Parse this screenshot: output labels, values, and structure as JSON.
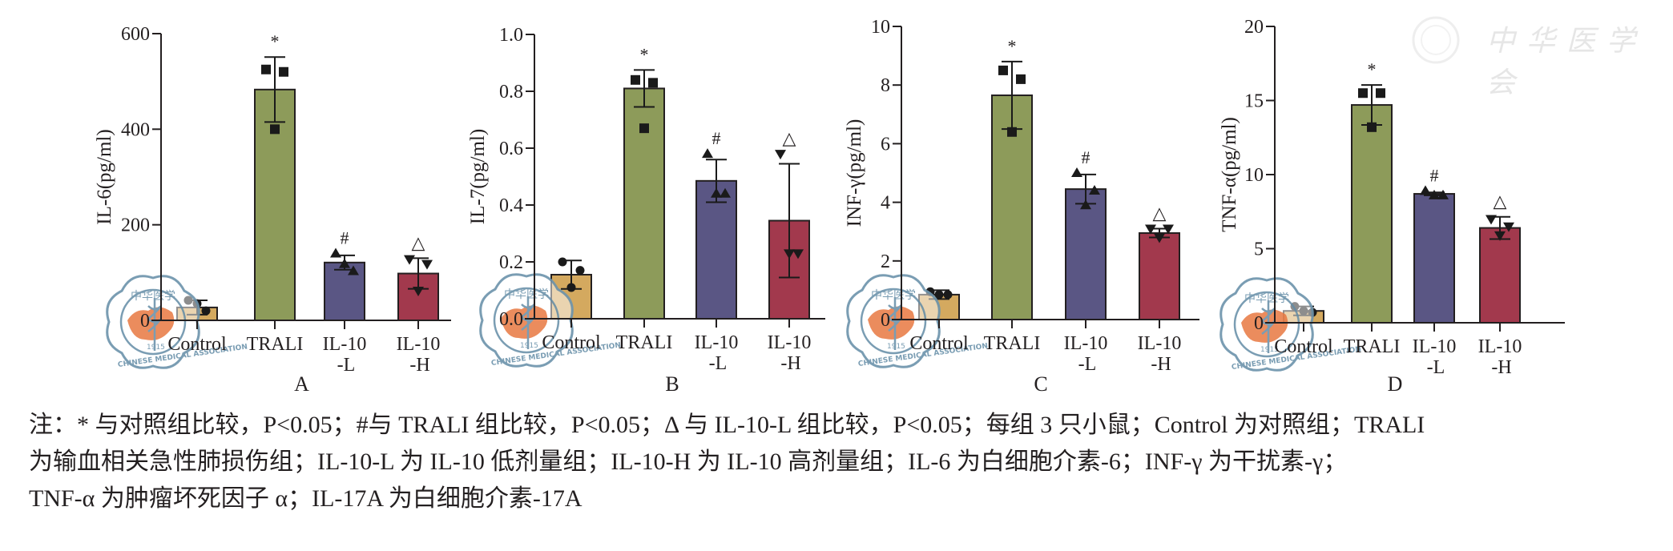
{
  "figure": {
    "watermark_text": "中华医学会",
    "logo_text": "CHINESE MEDICAL ASSOCIATION",
    "logo_cn": "中华医学",
    "logo_year": "1915"
  },
  "colors": {
    "Control": "#d4a95f",
    "TRALI": "#8d9b5a",
    "IL-10-L": "#5a5684",
    "IL-10-H": "#a2394d",
    "axis": "#231f20",
    "logo_ring": "#6f95ad",
    "logo_map": "#ea8350"
  },
  "chart_data": [
    {
      "panel": "A",
      "type": "bar",
      "title": "",
      "xlabel": "",
      "ylabel": "IL-6(pg/ml)",
      "categories": [
        "Control",
        "TRALI",
        "IL-10\n-L",
        "IL-10\n-H"
      ],
      "category_keys": [
        "Control",
        "TRALI",
        "IL-10-L",
        "IL-10-H"
      ],
      "values": [
        27,
        483,
        121,
        98
      ],
      "errors": [
        15,
        68,
        15,
        32
      ],
      "points": [
        [
          42,
          20,
          35
        ],
        [
          525,
          520,
          400
        ],
        [
          140,
          103,
          118
        ],
        [
          128,
          118,
          62
        ]
      ],
      "markers": [
        "circle",
        "square",
        "triangle-up",
        "triangle-down"
      ],
      "significance": [
        "",
        "*",
        "#",
        "△"
      ],
      "ylim": [
        0,
        600
      ],
      "yticks": [
        0,
        200,
        400,
        600
      ],
      "ytick_labels": [
        "0",
        "200",
        "400",
        "600"
      ],
      "grid": false
    },
    {
      "panel": "B",
      "type": "bar",
      "title": "",
      "xlabel": "",
      "ylabel": "IL-7(pg/ml)",
      "categories": [
        "Control",
        "TRALI",
        "IL-10\n-L",
        "IL-10\n-H"
      ],
      "category_keys": [
        "Control",
        "TRALI",
        "IL-10-L",
        "IL-10-H"
      ],
      "values": [
        0.155,
        0.81,
        0.485,
        0.345
      ],
      "errors": [
        0.05,
        0.065,
        0.075,
        0.2
      ],
      "points": [
        [
          0.2,
          0.17,
          0.11
        ],
        [
          0.84,
          0.83,
          0.67
        ],
        [
          0.58,
          0.44,
          0.44
        ],
        [
          0.58,
          0.23,
          0.23
        ]
      ],
      "markers": [
        "circle",
        "square",
        "triangle-up",
        "triangle-down"
      ],
      "significance": [
        "",
        "*",
        "#",
        "△"
      ],
      "ylim": [
        0,
        1.0
      ],
      "yticks": [
        0,
        0.2,
        0.4,
        0.6,
        0.8,
        1.0
      ],
      "ytick_labels": [
        "0.0",
        "0.2",
        "0.4",
        "0.6",
        "0.8",
        "1.0"
      ],
      "grid": false
    },
    {
      "panel": "C",
      "type": "bar",
      "title": "",
      "xlabel": "",
      "ylabel": "INF-γ(pg/ml)",
      "categories": [
        "Control",
        "TRALI",
        "IL-10\n-L",
        "IL-10\n-H"
      ],
      "category_keys": [
        "Control",
        "TRALI",
        "IL-10-L",
        "IL-10-H"
      ],
      "values": [
        0.85,
        7.65,
        4.45,
        2.95
      ],
      "errors": [
        0.15,
        1.15,
        0.5,
        0.15
      ],
      "points": [
        [
          0.95,
          0.85,
          0.85
        ],
        [
          8.5,
          8.2,
          6.4
        ],
        [
          5.0,
          4.4,
          3.9
        ],
        [
          3.1,
          3.1,
          2.8
        ]
      ],
      "markers": [
        "circle",
        "square",
        "triangle-up",
        "triangle-down"
      ],
      "significance": [
        "",
        "*",
        "#",
        "△"
      ],
      "ylim": [
        0,
        10
      ],
      "yticks": [
        0,
        2,
        4,
        6,
        8,
        10
      ],
      "ytick_labels": [
        "0",
        "2",
        "4",
        "6",
        "8",
        "10"
      ],
      "grid": false
    },
    {
      "panel": "D",
      "type": "bar",
      "title": "",
      "xlabel": "",
      "ylabel": "TNF-α(pg/ml)",
      "categories": [
        "Control",
        "TRALI",
        "IL-10\n-L",
        "IL-10\n-H"
      ],
      "category_keys": [
        "Control",
        "TRALI",
        "IL-10-L",
        "IL-10-H"
      ],
      "values": [
        0.8,
        14.7,
        8.7,
        6.4
      ],
      "errors": [
        0.3,
        1.35,
        0.1,
        0.75
      ],
      "points": [
        [
          1.1,
          0.7,
          0.8
        ],
        [
          15.5,
          15.5,
          13.2
        ],
        [
          8.9,
          8.6,
          8.6
        ],
        [
          7.0,
          6.5,
          5.9
        ]
      ],
      "markers": [
        "circle",
        "square",
        "triangle-up",
        "triangle-down"
      ],
      "significance": [
        "",
        "*",
        "#",
        "△"
      ],
      "ylim": [
        0,
        20
      ],
      "yticks": [
        0,
        5,
        10,
        15,
        20
      ],
      "ytick_labels": [
        "0",
        "5",
        "10",
        "15",
        "20"
      ],
      "grid": false
    }
  ],
  "note": {
    "lines": [
      "注：* 与对照组比较，P<0.05；#与 TRALI 组比较，P<0.05；Δ 与 IL-10-L 组比较，P<0.05；每组 3 只小鼠；Control 为对照组；TRALI",
      "为输血相关急性肺损伤组；IL-10-L 为 IL-10 低剂量组；IL-10-H 为 IL-10 高剂量组；IL-6 为白细胞介素-6；INF-γ 为干扰素-γ；",
      "TNF-α 为肿瘤坏死因子 α；IL-17A 为白细胞介素-17A"
    ]
  }
}
